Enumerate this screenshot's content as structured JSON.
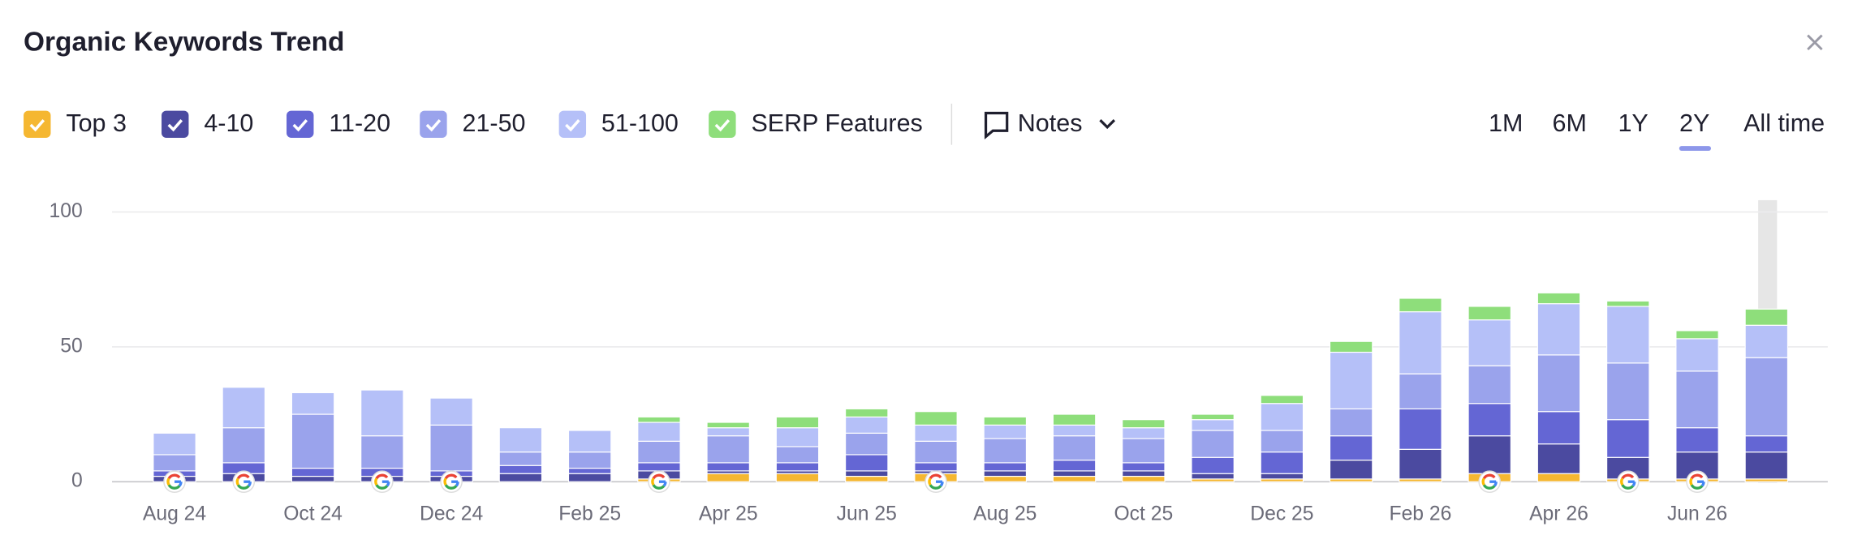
{
  "title": "Organic Keywords Trend",
  "notes_label": "Notes",
  "ranges": [
    "1M",
    "6M",
    "1Y",
    "2Y",
    "All time"
  ],
  "chart_data": {
    "type": "bar",
    "stacked": true,
    "categories": [
      "Aug 24",
      null,
      "Oct 24",
      null,
      "Dec 24",
      null,
      "Feb 25",
      null,
      "Apr 25",
      null,
      "Jun 25",
      null,
      "Aug 25",
      null,
      "Oct 25",
      null,
      "Dec 25",
      null,
      "Feb 26",
      null,
      "Apr 26",
      null,
      "Jun 26",
      null
    ],
    "series": [
      {
        "name": "Top 3",
        "color": "#f5b731",
        "values": [
          0,
          0,
          0,
          0,
          0,
          0,
          0,
          1,
          3,
          3,
          2,
          3,
          2,
          2,
          2,
          1,
          1,
          1,
          1,
          3,
          3,
          1,
          1,
          1
        ]
      },
      {
        "name": "4-10",
        "color": "#4b4aa0",
        "values": [
          2,
          3,
          2,
          2,
          2,
          3,
          3,
          3,
          1,
          1,
          2,
          1,
          2,
          2,
          2,
          2,
          2,
          7,
          11,
          14,
          11,
          8,
          10,
          10
        ]
      },
      {
        "name": "11-20",
        "color": "#6466d4",
        "values": [
          2,
          4,
          3,
          3,
          2,
          3,
          2,
          3,
          3,
          3,
          6,
          3,
          3,
          4,
          3,
          6,
          8,
          9,
          15,
          12,
          12,
          14,
          9,
          6
        ]
      },
      {
        "name": "21-50",
        "color": "#9aa3ec",
        "values": [
          6,
          13,
          20,
          12,
          17,
          5,
          6,
          8,
          10,
          6,
          8,
          8,
          9,
          9,
          9,
          10,
          8,
          10,
          13,
          14,
          21,
          21,
          21,
          29
        ]
      },
      {
        "name": "51-100",
        "color": "#b5c0f8",
        "values": [
          8,
          15,
          8,
          17,
          10,
          9,
          8,
          7,
          3,
          7,
          6,
          6,
          5,
          4,
          4,
          4,
          10,
          21,
          23,
          17,
          19,
          21,
          12,
          12
        ]
      },
      {
        "name": "SERP Features",
        "color": "#8ede7b",
        "values": [
          0,
          0,
          0,
          0,
          0,
          0,
          0,
          2,
          2,
          4,
          3,
          5,
          3,
          4,
          3,
          2,
          3,
          4,
          5,
          5,
          4,
          2,
          3,
          6
        ]
      }
    ],
    "ylim": [
      0,
      100
    ],
    "yticks": [
      0,
      50,
      100
    ],
    "grid": true
  }
}
